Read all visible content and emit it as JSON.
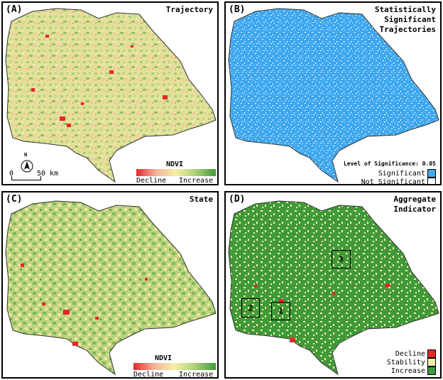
{
  "panels": {
    "a": {
      "label": "(A)",
      "title": "Trajectory",
      "legend_title": "NDVI",
      "legend_low": "Decline",
      "legend_high": "Increase",
      "scale_zero": "0",
      "scale_end": "50 km",
      "north": "N"
    },
    "b": {
      "label": "(B)",
      "title_lines": [
        "Statistically",
        "Significant",
        "Trajectories"
      ],
      "legend_heading": "Level of Significance: 0.05",
      "legend_sig": "Significant",
      "legend_not": "Not Significant"
    },
    "c": {
      "label": "(C)",
      "title": "State",
      "legend_title": "NDVI",
      "legend_low": "Decline",
      "legend_high": "Increase"
    },
    "d": {
      "label": "(D)",
      "title_lines": [
        "Aggregate",
        "Indicator"
      ],
      "boxes": [
        "3",
        "2",
        "1"
      ],
      "legend": [
        "Decline",
        "Stability",
        "Increase"
      ]
    }
  },
  "colors": {
    "decline": "#e8262a",
    "stability": "#f5f0a8",
    "increase": "#3f9a3a",
    "significant": "#40a8ee",
    "not_significant": "#ffffff"
  }
}
